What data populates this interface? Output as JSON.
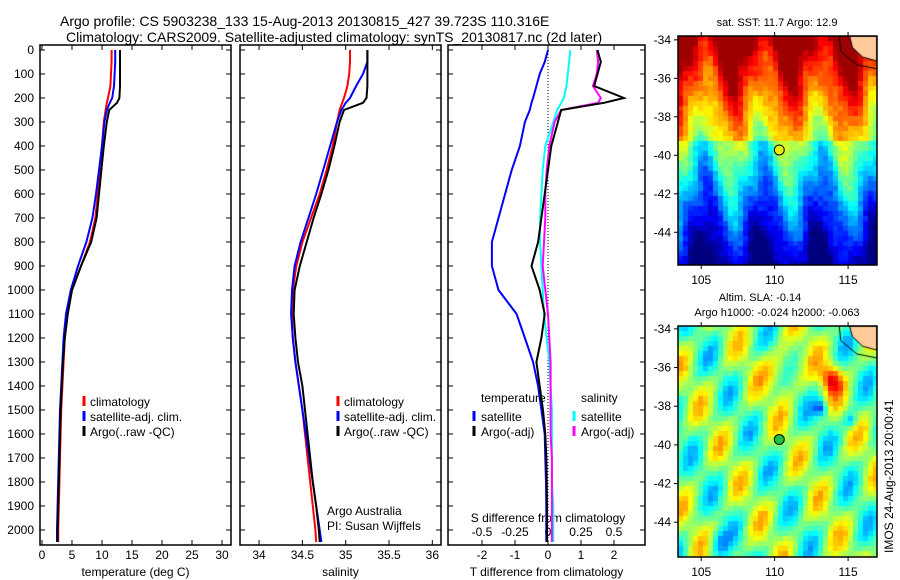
{
  "title_line1": "Argo profile: CS 5903238_133 15-Aug-2013 20130815_427 39.723S 110.316E",
  "title_line2": "Climatology: CARS2009. Satellite-adjusted climatology: synTS_20130817.nc (2d later)",
  "credit_line1": "Argo Australia",
  "credit_line2": "PI: Susan Wijffels",
  "side_stamp": "IMOS 24-Aug-2013 20:00:41",
  "colors": {
    "climatology": "#ff0000",
    "satellite": "#0000ff",
    "argo": "#000000",
    "sal_satellite": "#00ffff",
    "sal_argo": "#ff00ff"
  },
  "chart_data": [
    {
      "type": "line",
      "title": "",
      "xlabel": "temperature (deg C)",
      "ylabel": "",
      "xlim": [
        -0.33,
        31.5
      ],
      "ylim": [
        2150,
        -20
      ],
      "xticks": [
        "0",
        "5",
        "10",
        "15",
        "20",
        "25",
        "30"
      ],
      "xtick_values": [
        0,
        5,
        10,
        15,
        20,
        25,
        30
      ],
      "yticks": [
        "0",
        "100",
        "200",
        "300",
        "400",
        "500",
        "600",
        "700",
        "800",
        "900",
        "1000",
        "1100",
        "1200",
        "1300",
        "1400",
        "1500",
        "1600",
        "1700",
        "1800",
        "1900",
        "2000"
      ],
      "ytick_values": [
        0,
        100,
        200,
        300,
        400,
        500,
        600,
        700,
        800,
        900,
        1000,
        1100,
        1200,
        1300,
        1400,
        1500,
        1600,
        1700,
        1800,
        1900,
        2000
      ],
      "depth": [
        0,
        50,
        100,
        150,
        200,
        220,
        250,
        300,
        400,
        500,
        600,
        700,
        800,
        900,
        1000,
        1100,
        1200,
        1300,
        1400,
        1500,
        1600,
        1700,
        1800,
        1900,
        2000,
        2050
      ],
      "legend": [
        "climatology",
        "satellite-adj. clim.",
        "Argo(..raw -QC)"
      ],
      "series": [
        {
          "name": "climatology",
          "color": "#ff0000",
          "values": [
            11.6,
            11.6,
            11.5,
            11.4,
            11.0,
            10.8,
            10.6,
            10.3,
            10.0,
            9.6,
            9.3,
            8.9,
            8.0,
            6.5,
            5.0,
            4.2,
            3.8,
            3.6,
            3.4,
            3.2,
            3.1,
            3.0,
            2.9,
            2.8,
            2.7,
            2.7
          ]
        },
        {
          "name": "satellite-adj. clim.",
          "color": "#0000ff",
          "values": [
            12.2,
            12.2,
            12.1,
            12.0,
            11.7,
            11.3,
            10.8,
            10.4,
            10.0,
            9.5,
            9.0,
            8.4,
            7.4,
            6.0,
            4.8,
            4.0,
            3.6,
            3.4,
            3.2,
            3.0,
            2.9,
            2.8,
            2.7,
            2.6,
            2.5,
            2.5
          ]
        },
        {
          "name": "Argo(..raw -QC)",
          "color": "#000000",
          "values": [
            13.0,
            13.0,
            13.0,
            13.0,
            12.9,
            12.5,
            11.2,
            10.8,
            10.3,
            9.9,
            9.5,
            9.1,
            8.2,
            6.5,
            5.0,
            4.3,
            3.8,
            3.5,
            3.3,
            3.1,
            3.0,
            2.9,
            2.8,
            2.7,
            2.6,
            2.6
          ]
        }
      ]
    },
    {
      "type": "line",
      "xlabel": "salinity",
      "xlim": [
        33.78,
        36.1
      ],
      "ylim": [
        2150,
        -20
      ],
      "xticks": [
        "34",
        "34.5",
        "35",
        "35.5",
        "36"
      ],
      "xtick_values": [
        34,
        34.5,
        35,
        35.5,
        36
      ],
      "legend": [
        "climatology",
        "satellite-adj. clim.",
        "Argo(..raw -QC)"
      ],
      "series": [
        {
          "name": "climatology",
          "color": "#ff0000",
          "values": [
            35.05,
            35.05,
            35.04,
            35.02,
            34.98,
            34.96,
            34.93,
            34.9,
            34.85,
            34.78,
            34.7,
            34.6,
            34.5,
            34.43,
            34.39,
            34.38,
            34.39,
            34.42,
            34.46,
            34.5,
            34.53,
            34.56,
            34.59,
            34.62,
            34.65,
            34.66
          ]
        },
        {
          "name": "satellite-adj. clim.",
          "color": "#0000ff",
          "values": [
            35.25,
            35.25,
            35.2,
            35.12,
            35.05,
            35.0,
            34.95,
            34.9,
            34.82,
            34.74,
            34.66,
            34.57,
            34.48,
            34.41,
            34.38,
            34.37,
            34.39,
            34.42,
            34.46,
            34.5,
            34.54,
            34.58,
            34.62,
            34.66,
            34.7,
            34.72
          ]
        },
        {
          "name": "Argo(..raw -QC)",
          "color": "#000000",
          "values": [
            35.25,
            35.25,
            35.25,
            35.25,
            35.24,
            35.2,
            34.98,
            34.93,
            34.87,
            34.8,
            34.72,
            34.63,
            34.55,
            34.47,
            34.41,
            34.4,
            34.42,
            34.45,
            34.5,
            34.53,
            34.56,
            34.59,
            34.62,
            34.66,
            34.69,
            34.7
          ]
        }
      ]
    },
    {
      "type": "line",
      "xlabel": "T difference from climatology",
      "xlabel_top": "S difference from climatology",
      "xlim": [
        -3.03,
        2.94
      ],
      "ylim": [
        2150,
        -20
      ],
      "xticks": [
        "-2",
        "-1",
        "0",
        "1",
        "2"
      ],
      "xtick_values": [
        -2,
        -1,
        0,
        1,
        2
      ],
      "sticks": [
        "-0.5",
        "-0.25",
        "0",
        "0.25",
        "0.5"
      ],
      "stick_values": [
        -0.5,
        -0.25,
        0,
        0.25,
        0.5
      ],
      "legend_temperature_title": "temperature",
      "legend_salinity_title": "salinity",
      "legend": [
        "satellite",
        "Argo(-adj)",
        "satellite",
        "Argo(-adj)"
      ],
      "series": [
        {
          "name": "temperature satellite",
          "color": "#0000ff",
          "scale": "T",
          "values": [
            0,
            -0.1,
            -0.25,
            -0.35,
            -0.45,
            -0.5,
            -0.55,
            -0.7,
            -0.85,
            -1.1,
            -1.3,
            -1.5,
            -1.7,
            -1.7,
            -1.5,
            -0.95,
            -0.7,
            -0.45,
            -0.3,
            -0.2,
            -0.1,
            -0.08,
            -0.06,
            -0.05,
            -0.05,
            -0.05
          ]
        },
        {
          "name": "salinity satellite",
          "color": "#00ffff",
          "scale": "S",
          "values": [
            0.17,
            0.16,
            0.15,
            0.14,
            0.12,
            0.1,
            0.07,
            0.04,
            -0.02,
            -0.04,
            -0.05,
            -0.06,
            -0.06,
            -0.05,
            -0.04,
            -0.03,
            -0.01,
            0.01,
            0.02,
            0.03,
            0.03,
            0.03,
            0.03,
            0.04,
            0.04,
            0.04
          ]
        },
        {
          "name": "salinity Argo(-adj)",
          "color": "#ff00ff",
          "scale": "S",
          "values": [
            0.37,
            0.38,
            0.37,
            0.34,
            0.4,
            0.38,
            0.1,
            0.05,
            0.01,
            -0.01,
            -0.02,
            -0.02,
            -0.03,
            -0.04,
            -0.02,
            0.0,
            0.01,
            0.02,
            0.02,
            0.02,
            0.02,
            0.03,
            0.03,
            0.03,
            0.03,
            0.03
          ]
        },
        {
          "name": "temperature Argo(-adj)",
          "color": "#000000",
          "scale": "T",
          "values": [
            1.5,
            1.6,
            1.5,
            1.4,
            2.3,
            1.7,
            0.4,
            0.3,
            0.1,
            0.0,
            -0.1,
            -0.2,
            -0.3,
            -0.5,
            -0.25,
            -0.1,
            -0.2,
            -0.35,
            -0.25,
            -0.15,
            -0.08,
            -0.05,
            -0.04,
            -0.03,
            -0.03,
            -0.03
          ]
        }
      ]
    },
    {
      "type": "heatmap",
      "title": "sat. SST: 11.7 Argo: 12.9",
      "xlim": [
        103.42,
        116.97
      ],
      "ylim": [
        -45.7,
        -33.8
      ],
      "xticks": [
        "105",
        "110",
        "115"
      ],
      "xtick_values": [
        105,
        110,
        115
      ],
      "yticks": [
        "-34",
        "-36",
        "-38",
        "-40",
        "-42",
        "-44"
      ],
      "ytick_values": [
        -34,
        -36,
        -38,
        -40,
        -42,
        -44
      ],
      "marker": {
        "lon": 110.316,
        "lat": -39.723
      }
    },
    {
      "type": "heatmap",
      "title": "Altim. SLA: -0.14",
      "subtitle": "Argo h1000: -0.024 h2000: -0.063",
      "xlim": [
        103.42,
        116.97
      ],
      "ylim": [
        -45.8,
        -33.85
      ],
      "xticks": [
        "105",
        "110",
        "115"
      ],
      "xtick_values": [
        105,
        110,
        115
      ],
      "yticks": [
        "-34",
        "-36",
        "-38",
        "-40",
        "-42",
        "-44"
      ],
      "ytick_values": [
        -34,
        -36,
        -38,
        -40,
        -42,
        -44
      ],
      "marker": {
        "lon": 110.316,
        "lat": -39.723
      }
    }
  ]
}
